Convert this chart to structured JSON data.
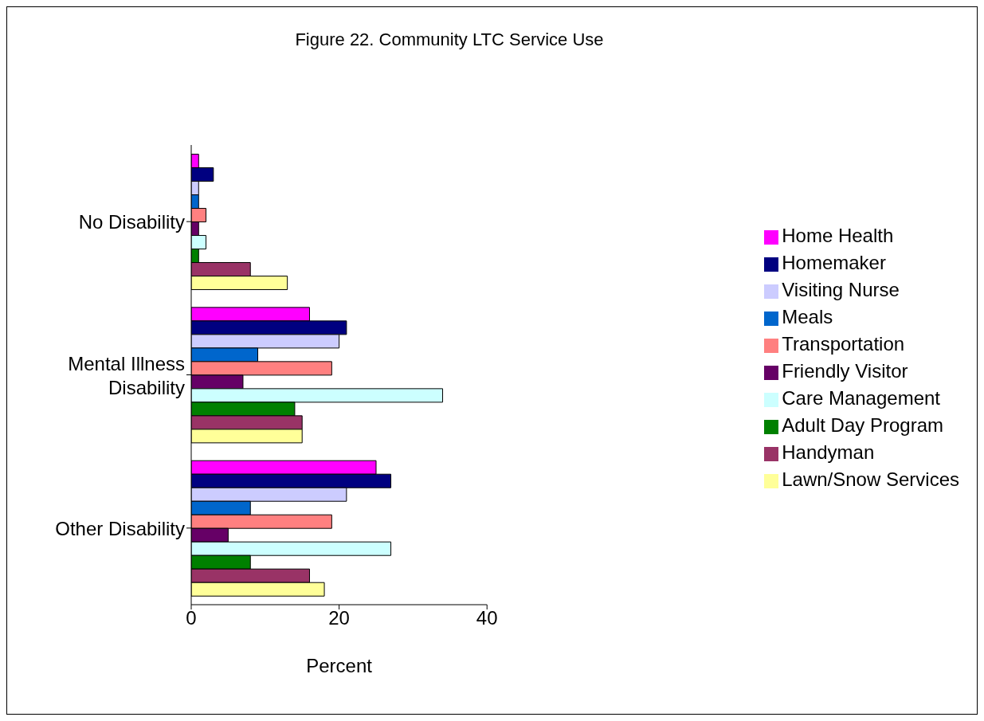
{
  "chart_data": {
    "type": "bar",
    "orientation": "horizontal",
    "title": "Figure 22.  Community LTC Service Use",
    "xlabel": "Percent",
    "categories": [
      "No Disability",
      "Mental Illness Disability",
      "Other Disability"
    ],
    "series": [
      {
        "name": "Home Health",
        "color": "#ff00ff",
        "values": [
          1,
          16,
          25
        ]
      },
      {
        "name": "Homemaker",
        "color": "#000080",
        "values": [
          3,
          21,
          27
        ]
      },
      {
        "name": "Visiting Nurse",
        "color": "#ccccff",
        "values": [
          1,
          20,
          21
        ]
      },
      {
        "name": "Meals",
        "color": "#0066cc",
        "values": [
          1,
          9,
          8
        ]
      },
      {
        "name": "Transportation",
        "color": "#ff8080",
        "values": [
          2,
          19,
          19
        ]
      },
      {
        "name": "Friendly Visitor",
        "color": "#660066",
        "values": [
          1,
          7,
          5
        ]
      },
      {
        "name": "Care Management",
        "color": "#ccffff",
        "values": [
          2,
          34,
          27
        ]
      },
      {
        "name": "Adult Day Program",
        "color": "#008000",
        "values": [
          1,
          14,
          8
        ]
      },
      {
        "name": "Handyman",
        "color": "#993366",
        "values": [
          8,
          15,
          16
        ]
      },
      {
        "name": "Lawn/Snow Services",
        "color": "#ffff99",
        "values": [
          13,
          15,
          18
        ]
      }
    ],
    "xlim": [
      0,
      40
    ],
    "xticks": [
      0,
      20,
      40
    ],
    "grid": false,
    "legend": "right"
  }
}
